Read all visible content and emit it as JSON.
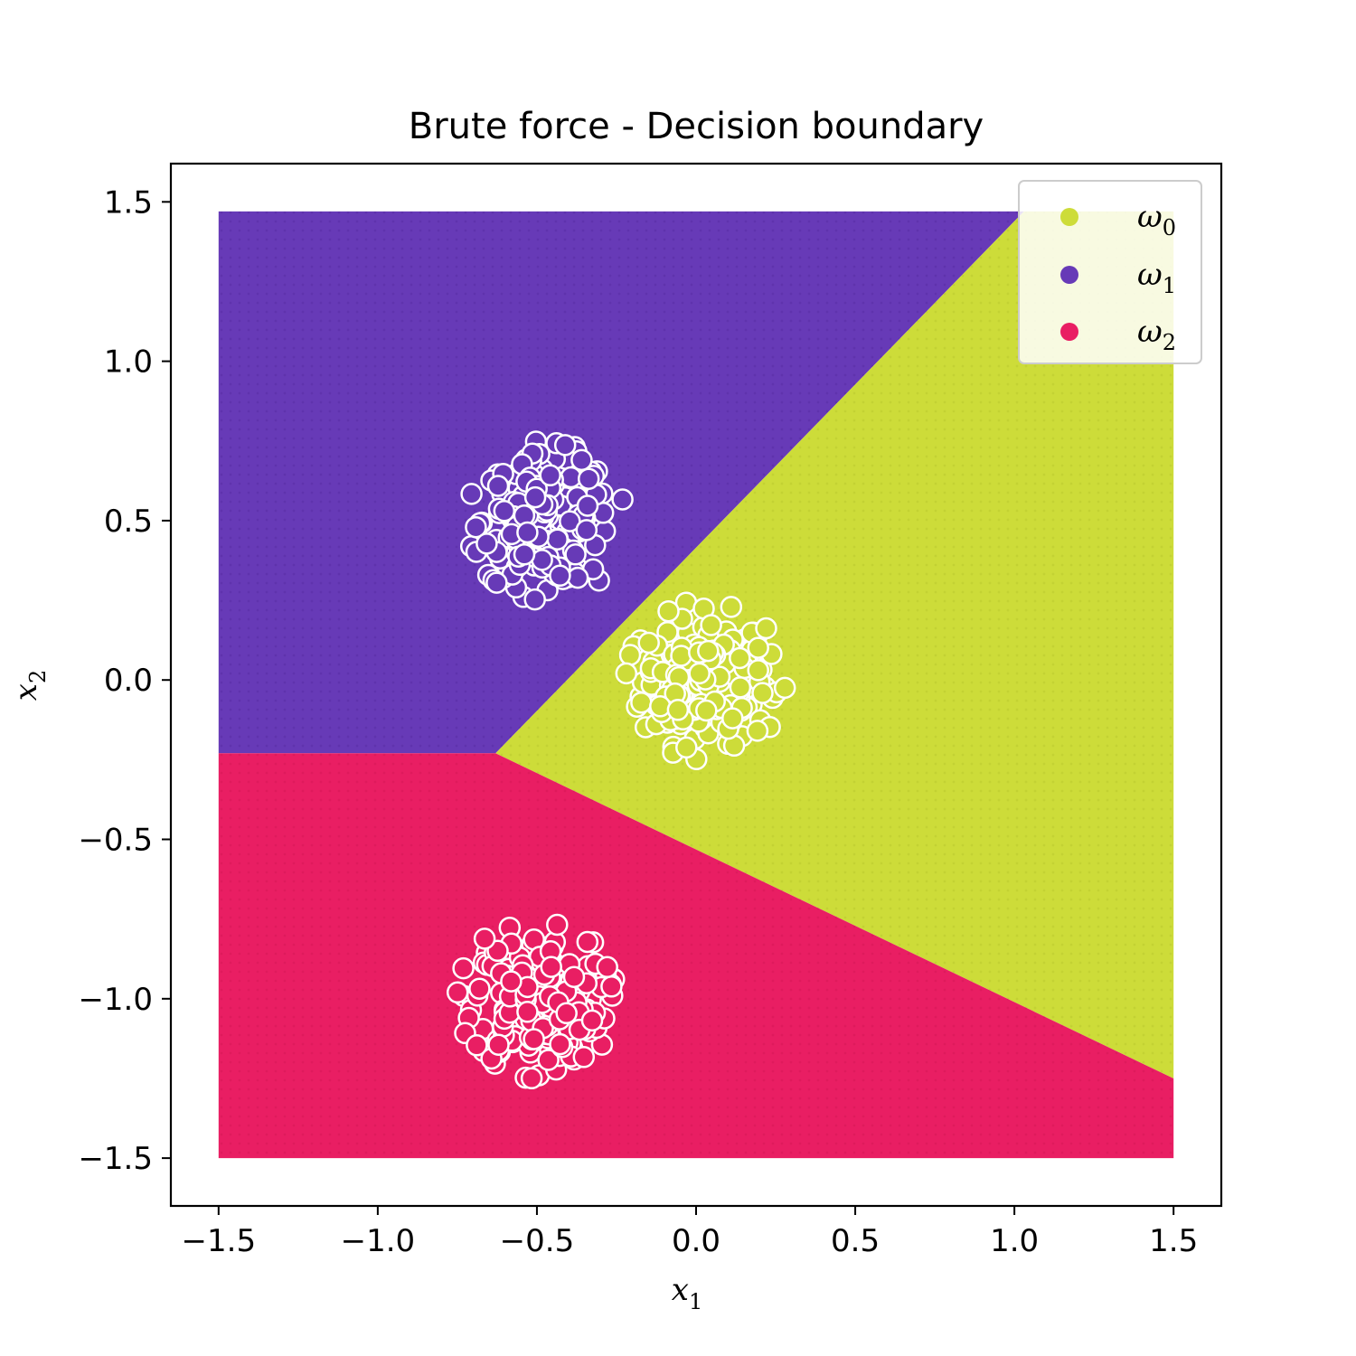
{
  "chart_data": {
    "type": "scatter",
    "title": "Brute force - Decision boundary",
    "xlabel": "x",
    "xlabel_sub": "1",
    "ylabel": "x",
    "ylabel_sub": "2",
    "xlim": [
      -1.65,
      1.65
    ],
    "ylim": [
      -1.65,
      1.62
    ],
    "xticks": [
      -1.5,
      -1.0,
      -0.5,
      0.0,
      0.5,
      1.0,
      1.5
    ],
    "yticks": [
      -1.5,
      -1.0,
      -0.5,
      0.0,
      0.5,
      1.0,
      1.5
    ],
    "xtick_labels": [
      "−1.5",
      "−1.0",
      "−0.5",
      "0.0",
      "0.5",
      "1.0",
      "1.5"
    ],
    "ytick_labels": [
      "−1.5",
      "−1.0",
      "−0.5",
      "0.0",
      "0.5",
      "1.0",
      "1.5"
    ],
    "grid": false,
    "legend_position": "top-right",
    "decision_region": {
      "x_range": [
        -1.5,
        1.5
      ],
      "y_range": [
        -1.5,
        1.47
      ],
      "boundaries": {
        "omega1_omega2_y": -0.23,
        "triple_point": [
          -0.63,
          -0.23
        ],
        "omega0_omega1_end": [
          1.03,
          1.47
        ],
        "omega0_omega2_end": [
          1.5,
          -1.25
        ]
      }
    },
    "series": [
      {
        "name": "ω",
        "sub": "0",
        "color": "#cddc39",
        "center": [
          0.03,
          0.0
        ],
        "spread": 0.16,
        "count": 250
      },
      {
        "name": "ω",
        "sub": "1",
        "color": "#673ab7",
        "center": [
          -0.47,
          0.5
        ],
        "spread": 0.16,
        "count": 250
      },
      {
        "name": "ω",
        "sub": "2",
        "color": "#e91e63",
        "center": [
          -0.5,
          -1.0
        ],
        "spread": 0.16,
        "count": 300
      }
    ]
  }
}
